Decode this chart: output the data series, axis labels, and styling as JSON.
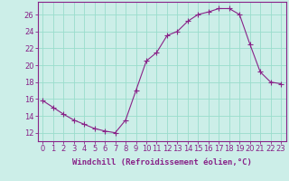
{
  "x": [
    0,
    1,
    2,
    3,
    4,
    5,
    6,
    7,
    8,
    9,
    10,
    11,
    12,
    13,
    14,
    15,
    16,
    17,
    18,
    19,
    20,
    21,
    22,
    23
  ],
  "y": [
    15.8,
    15.0,
    14.2,
    13.5,
    13.0,
    12.5,
    12.2,
    12.0,
    13.5,
    17.0,
    20.5,
    21.5,
    23.5,
    24.0,
    25.2,
    26.0,
    26.3,
    26.7,
    26.7,
    26.0,
    22.5,
    19.2,
    18.0,
    17.8
  ],
  "line_color": "#882288",
  "marker": "+",
  "marker_size": 4,
  "bg_color": "#cceee8",
  "grid_color": "#99ddcc",
  "xlabel": "Windchill (Refroidissement éolien,°C)",
  "xlim": [
    -0.5,
    23.5
  ],
  "ylim": [
    11.0,
    27.5
  ],
  "yticks": [
    12,
    14,
    16,
    18,
    20,
    22,
    24,
    26
  ],
  "xtick_labels": [
    "0",
    "1",
    "2",
    "3",
    "4",
    "5",
    "6",
    "7",
    "8",
    "9",
    "10",
    "11",
    "12",
    "13",
    "14",
    "15",
    "16",
    "17",
    "18",
    "19",
    "20",
    "21",
    "22",
    "23"
  ],
  "axis_color": "#882288",
  "tick_color": "#882288",
  "label_color": "#882288",
  "label_fontsize": 6.5,
  "tick_fontsize": 6.0,
  "linewidth": 0.8,
  "marker_edge_width": 0.8
}
